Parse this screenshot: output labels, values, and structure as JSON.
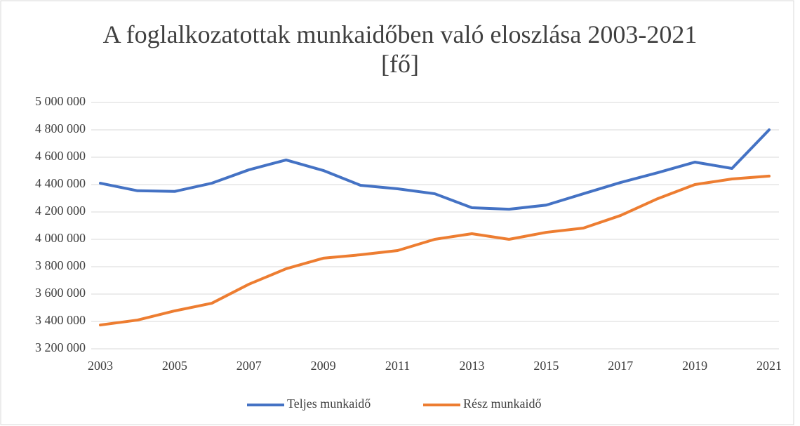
{
  "chart_data": {
    "type": "line",
    "title": "A foglalkozatottak munkaidőben való eloszlása 2003-2021 [fő]",
    "categories": [
      "2003",
      null,
      "2005",
      null,
      "2007",
      null,
      "2009",
      null,
      "2011",
      null,
      "2013",
      null,
      "2015",
      null,
      "2017",
      null,
      "2019",
      null,
      "2021"
    ],
    "series": [
      {
        "name": "Teljes munkaidő",
        "color": "#4472c4",
        "values": [
          4410000,
          4355000,
          4350000,
          4410000,
          4508000,
          4580000,
          4503000,
          4395000,
          4369000,
          4333000,
          4231000,
          4220000,
          4250000,
          4333000,
          4415000,
          4487000,
          4564000,
          4518000,
          4800000
        ]
      },
      {
        "name": "Rész munkaidő",
        "color": "#ed7d31",
        "values": [
          3374000,
          3410000,
          3477000,
          3533000,
          3672000,
          3785000,
          3862000,
          3887000,
          3918000,
          4000000,
          4041000,
          4000000,
          4051000,
          4082000,
          4174000,
          4297000,
          4400000,
          4441000,
          4462000
        ]
      }
    ],
    "ylim": [
      3200000,
      5000000
    ],
    "yticks": [
      {
        "value": 3200000,
        "label": "3 200 000"
      },
      {
        "value": 3400000,
        "label": "3 400 000"
      },
      {
        "value": 3600000,
        "label": "3 600 000"
      },
      {
        "value": 3800000,
        "label": "3 800 000"
      },
      {
        "value": 4000000,
        "label": "4 000 000"
      },
      {
        "value": 4200000,
        "label": "4 200 000"
      },
      {
        "value": 4400000,
        "label": "4 400 000"
      },
      {
        "value": 4600000,
        "label": "4 600 000"
      },
      {
        "value": 4800000,
        "label": "4 800 000"
      },
      {
        "value": 5000000,
        "label": "5 000 000"
      }
    ],
    "grid": true,
    "legend": "bottom"
  }
}
